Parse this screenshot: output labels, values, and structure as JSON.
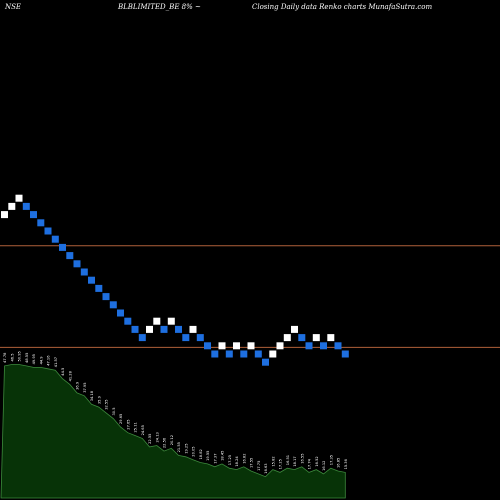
{
  "header": {
    "exchange": "NSE",
    "title": "BLBLIMITED_BE 8% ~",
    "subtitle": "Closing Daily data  Renko  charts MunafaSutra.com"
  },
  "colors": {
    "background": "#000000",
    "up_brick": "#ffffff",
    "down_brick": "#1e6fe0",
    "hline": "#b0603a",
    "volume_fill": "#073307",
    "volume_stroke": "#3c8a3c"
  },
  "chart_data": {
    "type": "renko",
    "bricks": [
      {
        "col": 0,
        "level": 12,
        "dir": "up"
      },
      {
        "col": 1,
        "level": 13,
        "dir": "up"
      },
      {
        "col": 2,
        "level": 14,
        "dir": "up"
      },
      {
        "col": 3,
        "level": 13,
        "dir": "down"
      },
      {
        "col": 4,
        "level": 12,
        "dir": "down"
      },
      {
        "col": 5,
        "level": 11,
        "dir": "down"
      },
      {
        "col": 6,
        "level": 10,
        "dir": "down"
      },
      {
        "col": 7,
        "level": 9,
        "dir": "down"
      },
      {
        "col": 8,
        "level": 8,
        "dir": "down"
      },
      {
        "col": 9,
        "level": 7,
        "dir": "down"
      },
      {
        "col": 10,
        "level": 6,
        "dir": "down"
      },
      {
        "col": 11,
        "level": 5,
        "dir": "down"
      },
      {
        "col": 12,
        "level": 4,
        "dir": "down"
      },
      {
        "col": 13,
        "level": 3,
        "dir": "down"
      },
      {
        "col": 14,
        "level": 2,
        "dir": "down"
      },
      {
        "col": 15,
        "level": 1,
        "dir": "down"
      },
      {
        "col": 16,
        "level": 0,
        "dir": "down"
      },
      {
        "col": 17,
        "level": -1,
        "dir": "down"
      },
      {
        "col": 18,
        "level": -2,
        "dir": "down"
      },
      {
        "col": 19,
        "level": -3,
        "dir": "down"
      },
      {
        "col": 20,
        "level": -2,
        "dir": "up"
      },
      {
        "col": 21,
        "level": -1,
        "dir": "up"
      },
      {
        "col": 22,
        "level": -2,
        "dir": "down"
      },
      {
        "col": 23,
        "level": -1,
        "dir": "up"
      },
      {
        "col": 24,
        "level": -2,
        "dir": "down"
      },
      {
        "col": 25,
        "level": -3,
        "dir": "down"
      },
      {
        "col": 26,
        "level": -2,
        "dir": "up"
      },
      {
        "col": 27,
        "level": -3,
        "dir": "down"
      },
      {
        "col": 28,
        "level": -4,
        "dir": "down"
      },
      {
        "col": 29,
        "level": -5,
        "dir": "down"
      },
      {
        "col": 30,
        "level": -4,
        "dir": "up"
      },
      {
        "col": 31,
        "level": -5,
        "dir": "down"
      },
      {
        "col": 32,
        "level": -4,
        "dir": "up"
      },
      {
        "col": 33,
        "level": -5,
        "dir": "down"
      },
      {
        "col": 34,
        "level": -4,
        "dir": "up"
      },
      {
        "col": 35,
        "level": -5,
        "dir": "down"
      },
      {
        "col": 36,
        "level": -6,
        "dir": "down"
      },
      {
        "col": 37,
        "level": -5,
        "dir": "up"
      },
      {
        "col": 38,
        "level": -4,
        "dir": "up"
      },
      {
        "col": 39,
        "level": -3,
        "dir": "up"
      },
      {
        "col": 40,
        "level": -2,
        "dir": "up"
      },
      {
        "col": 41,
        "level": -3,
        "dir": "down"
      },
      {
        "col": 42,
        "level": -4,
        "dir": "down"
      },
      {
        "col": 43,
        "level": -3,
        "dir": "up"
      },
      {
        "col": 44,
        "level": -4,
        "dir": "down"
      },
      {
        "col": 45,
        "level": -3,
        "dir": "up"
      },
      {
        "col": 46,
        "level": -4,
        "dir": "down"
      },
      {
        "col": 47,
        "level": -5,
        "dir": "down"
      }
    ],
    "hlines": [
      8.2,
      -4.2
    ],
    "level_range": [
      -25.5,
      31
    ],
    "volume": [
      0.93,
      0.94,
      0.94,
      0.93,
      0.92,
      0.92,
      0.91,
      0.9,
      0.84,
      0.8,
      0.74,
      0.72,
      0.66,
      0.64,
      0.6,
      0.56,
      0.5,
      0.46,
      0.44,
      0.42,
      0.36,
      0.37,
      0.33,
      0.35,
      0.3,
      0.29,
      0.27,
      0.25,
      0.24,
      0.22,
      0.24,
      0.21,
      0.2,
      0.22,
      0.19,
      0.17,
      0.15,
      0.2,
      0.18,
      0.21,
      0.2,
      0.22,
      0.18,
      0.2,
      0.17,
      0.21,
      0.19,
      0.18
    ],
    "volume_labels": [
      "47.78",
      "46.5",
      "50.95",
      "48.55",
      "49.95",
      "44.9",
      "47.16",
      "41.57",
      "44.5",
      "41.28",
      "36.9",
      "37.95",
      "34.18",
      "35.9",
      "32.55",
      "30.5",
      "29.65",
      "27.65",
      "25.11",
      "24.65",
      "22.55",
      "24.13",
      "22.56",
      "20.12",
      "21.55",
      "19.25",
      "20.05",
      "18.82",
      "19.55",
      "17.37",
      "18.45",
      "17.25",
      "18.24",
      "16.82",
      "17.55",
      "17.75",
      "16.63",
      "15.82",
      "17.25",
      "16.51",
      "18.17",
      "16.55",
      "17.74",
      "16.52",
      "16.12",
      "17.35",
      "16.85",
      "15.36"
    ]
  }
}
